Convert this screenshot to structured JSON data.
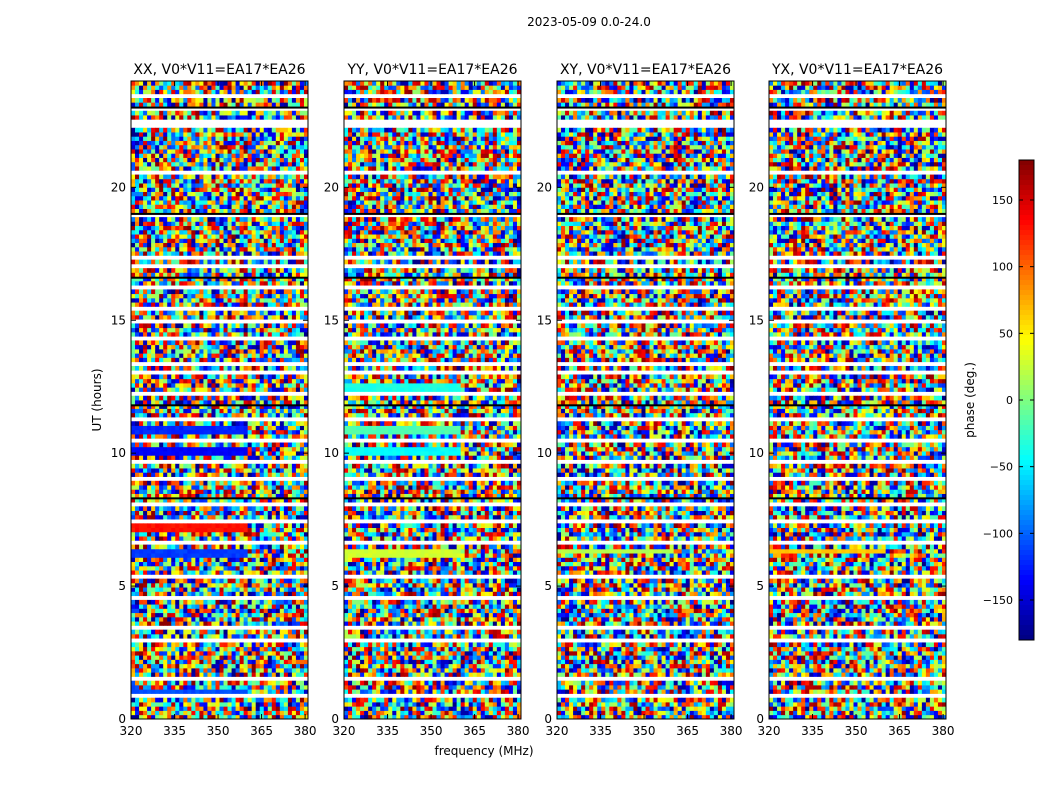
{
  "chart_data": {
    "type": "heatmap",
    "title": "2023-05-09 0.0-24.0",
    "xlabel": "frequency (MHz)",
    "ylabel": "UT (hours)",
    "xlim": [
      320,
      381
    ],
    "ylim": [
      0,
      24
    ],
    "xticks": [
      "320",
      "335",
      "350",
      "365",
      "380"
    ],
    "yticks": [
      "0",
      "5",
      "10",
      "15",
      "20"
    ],
    "panels": [
      {
        "title": "XX, V0*V11=EA17*EA26",
        "polarization": "XX"
      },
      {
        "title": "YY, V0*V11=EA17*EA26",
        "polarization": "YY"
      },
      {
        "title": "XY, V0*V11=EA17*EA26",
        "polarization": "XY"
      },
      {
        "title": "YX, V0*V11=EA17*EA26",
        "polarization": "YX"
      }
    ],
    "colorbar": {
      "label": "phase (deg.)",
      "range": [
        -180,
        180
      ],
      "ticks": [
        "150",
        "100",
        "50",
        "0",
        "−50",
        "−100",
        "−150"
      ]
    },
    "flagged_ut_gaps": [
      0.8,
      1.5,
      3.0,
      3.5,
      4.5,
      5.3,
      6.7,
      7.5,
      8.0,
      9.0,
      9.7,
      10.4,
      11.3,
      12.3,
      13.0,
      13.4,
      14.3,
      15.0,
      15.5,
      16.3,
      17.0,
      17.3,
      19.0,
      20.5,
      22.3,
      22.5,
      23.0,
      23.5
    ]
  }
}
